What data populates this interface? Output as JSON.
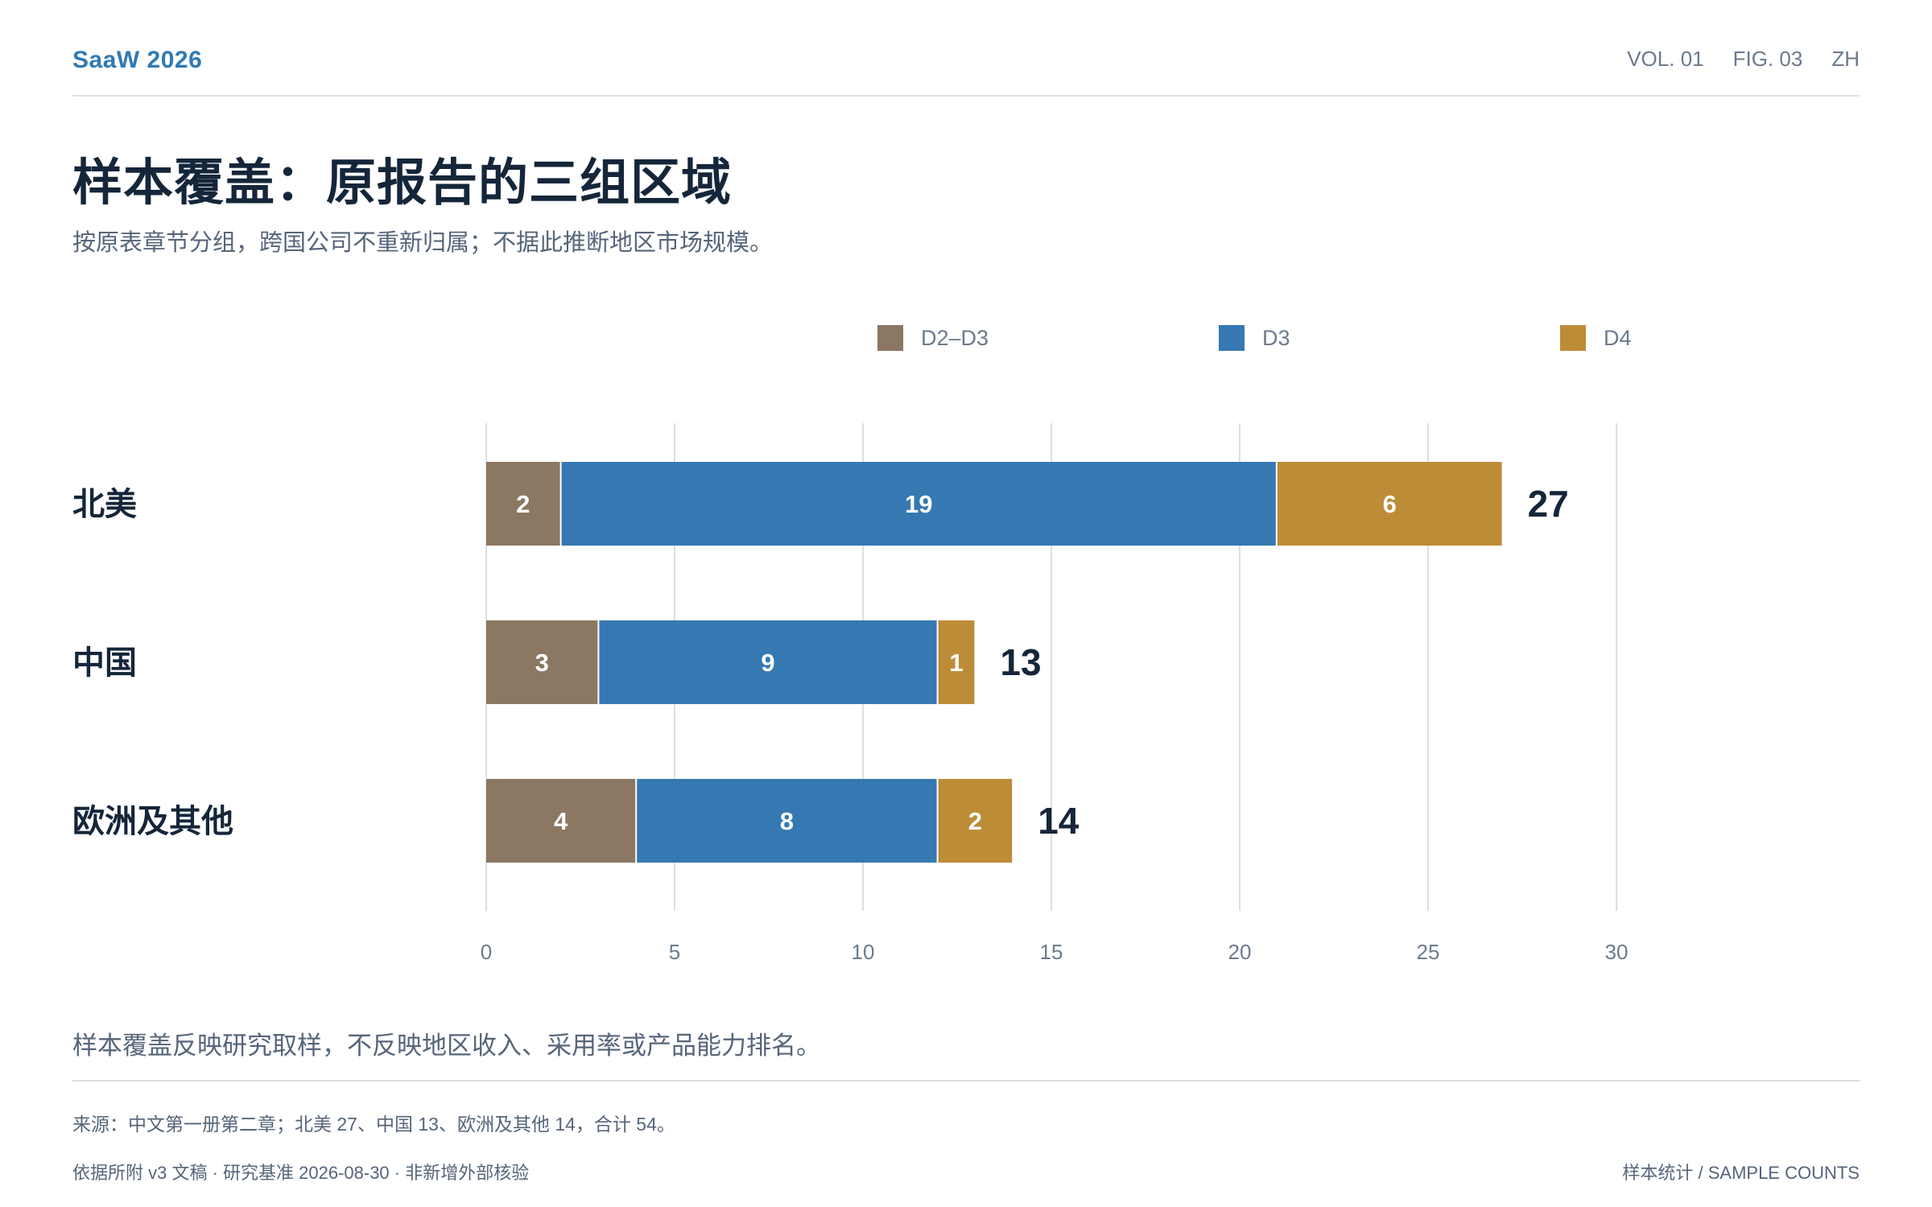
{
  "header": {
    "brand": "SaaW 2026",
    "vol": "VOL. 01",
    "fig": "FIG. 03",
    "lang": "ZH"
  },
  "title": "样本覆盖：原报告的三组区域",
  "subtitle": "按原表章节分组，跨国公司不重新归属；不据此推断地区市场规模。",
  "note": "样本覆盖反映研究取样，不反映地区收入、采用率或产品能力排名。",
  "source": "来源：中文第一册第二章；北美 27、中国 13、欧洲及其他 14，合计 54。",
  "footer": {
    "left": "依据所附 v3 文稿 · 研究基准 2026-08-30 · 非新增外部核验",
    "right": "样本统计 / SAMPLE COUNTS"
  },
  "chart_data": {
    "type": "bar",
    "orientation": "horizontal",
    "stacked": true,
    "categories": [
      "北美",
      "中国",
      "欧洲及其他"
    ],
    "series": [
      {
        "name": "D2–D3",
        "values": [
          2,
          3,
          4
        ],
        "color": "#8b7762"
      },
      {
        "name": "D3",
        "values": [
          19,
          9,
          8
        ],
        "color": "#3679b2"
      },
      {
        "name": "D4",
        "values": [
          6,
          1,
          2
        ],
        "color": "#bd8c36"
      }
    ],
    "totals": [
      27,
      13,
      14
    ],
    "xlim": [
      0,
      30
    ],
    "xticks": [
      0,
      5,
      10,
      15,
      20,
      25,
      30
    ],
    "grid": true,
    "legend": "top"
  }
}
